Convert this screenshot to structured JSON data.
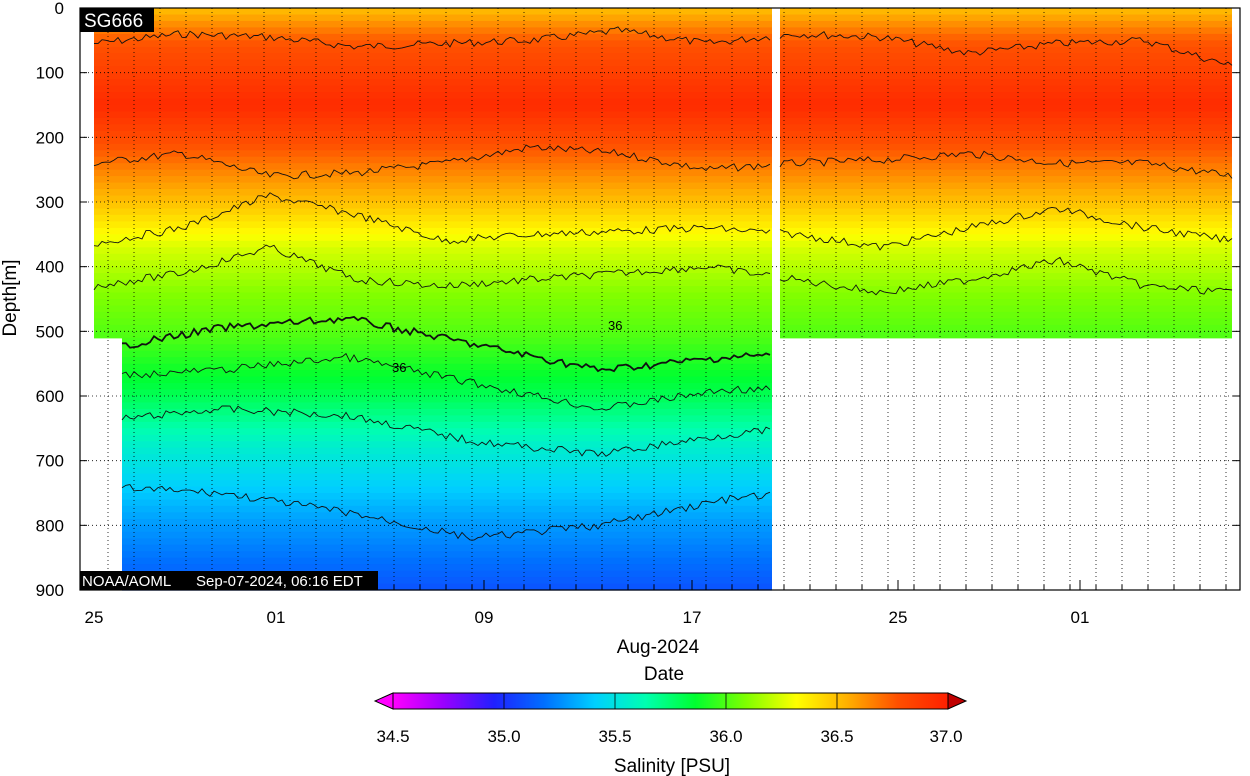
{
  "chart_data": {
    "type": "heatmap",
    "title_tag": "SG666",
    "credit": "NOAA/AOML",
    "timestamp": "Sep-07-2024, 06:16 EDT",
    "xlabel_line1": "Aug-2024",
    "xlabel_line2": "Date",
    "ylabel": "Depth[m]",
    "colorbar_label": "Salinity [PSU]",
    "x_tick_labels": [
      "25",
      "01",
      "09",
      "17",
      "25",
      "01"
    ],
    "y_tick_labels": [
      "0",
      "100",
      "200",
      "300",
      "400",
      "500",
      "600",
      "700",
      "800",
      "900"
    ],
    "ylim": [
      0,
      900
    ],
    "y_inverted": true,
    "colorbar_ticks": [
      "34.5",
      "35.0",
      "35.5",
      "36.0",
      "36.5",
      "37.0"
    ],
    "colorbar_range": [
      34.5,
      37.0
    ],
    "colorscale": [
      "#ff00ff",
      "#9a00ff",
      "#2020ff",
      "#0070ff",
      "#00d0ff",
      "#00ffb0",
      "#00ff30",
      "#80ff00",
      "#ffff00",
      "#ffb000",
      "#ff5000",
      "#ff2000"
    ],
    "contour_labels": [
      "36",
      "36"
    ],
    "salinity_profile": [
      {
        "depth": 0,
        "salinity": 36.5
      },
      {
        "depth": 50,
        "salinity": 36.75
      },
      {
        "depth": 150,
        "salinity": 36.95
      },
      {
        "depth": 220,
        "salinity": 36.75
      },
      {
        "depth": 300,
        "salinity": 36.5
      },
      {
        "depth": 370,
        "salinity": 36.25
      },
      {
        "depth": 440,
        "salinity": 36.1
      },
      {
        "depth": 510,
        "salinity": 36.0
      },
      {
        "depth": 600,
        "salinity": 35.8
      },
      {
        "depth": 680,
        "salinity": 35.55
      },
      {
        "depth": 790,
        "salinity": 35.3
      },
      {
        "depth": 900,
        "salinity": 35.1
      }
    ],
    "contours": [
      {
        "level": 36.75,
        "depth": [
          55,
          40,
          45,
          60,
          55,
          50,
          35,
          55,
          40,
          45,
          70,
          55,
          50,
          90
        ]
      },
      {
        "level": 36.75,
        "depth": [
          240,
          225,
          260,
          255,
          240,
          215,
          225,
          250,
          240,
          235,
          225,
          240,
          240,
          260
        ]
      },
      {
        "level": 36.5,
        "depth": [
          365,
          340,
          290,
          320,
          360,
          350,
          345,
          340,
          350,
          370,
          340,
          310,
          340,
          360
        ]
      },
      {
        "level": 36.25,
        "depth": [
          430,
          410,
          370,
          420,
          430,
          420,
          410,
          400,
          420,
          440,
          420,
          390,
          430,
          440
        ]
      },
      {
        "level": 36.0,
        "depth": [
          530,
          495,
          480,
          520,
          560,
          540,
          530,
          510,
          505,
          510
        ]
      },
      {
        "level": 35.9,
        "depth": [
          570,
          560,
          540,
          580,
          620,
          590,
          590,
          560,
          570,
          600
        ]
      },
      {
        "level": 35.75,
        "depth": [
          640,
          620,
          630,
          670,
          690,
          660,
          640,
          620,
          650,
          680
        ]
      },
      {
        "level": 35.5,
        "depth": [
          740,
          750,
          780,
          820,
          800,
          760,
          740,
          730,
          760,
          790
        ]
      }
    ]
  }
}
